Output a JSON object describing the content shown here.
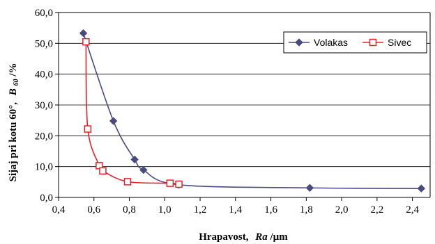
{
  "chart_data": {
    "type": "scatter",
    "title": "",
    "xlabel": {
      "main": "Hrapavost,",
      "var": "Ra",
      "unit": "/µm"
    },
    "ylabel": {
      "main": "Sijaj pri kotu 60°,",
      "var": "B",
      "sub": "60",
      "unit": "/%"
    },
    "xlim": [
      0.4,
      2.5
    ],
    "ylim": [
      0,
      60
    ],
    "xticks": [
      "0,4",
      "0,6",
      "0,8",
      "1,0",
      "1,2",
      "1,4",
      "1,6",
      "1,8",
      "2,0",
      "2,2",
      "2,4"
    ],
    "xtick_values": [
      0.4,
      0.6,
      0.8,
      1.0,
      1.2,
      1.4,
      1.6,
      1.8,
      2.0,
      2.2,
      2.4
    ],
    "yticks": [
      "0,0",
      "10,0",
      "20,0",
      "30,0",
      "40,0",
      "50,0",
      "60,0"
    ],
    "ytick_values": [
      0,
      10,
      20,
      30,
      40,
      50,
      60
    ],
    "grid": "horizontal",
    "legend_position": "top-right",
    "series": [
      {
        "name": "Volakas",
        "color": "#4a4a7e",
        "marker": "diamond",
        "points": [
          {
            "x": 0.54,
            "y": 53.3
          },
          {
            "x": 0.71,
            "y": 24.8
          },
          {
            "x": 0.83,
            "y": 12.3
          },
          {
            "x": 0.88,
            "y": 8.9
          },
          {
            "x": 1.08,
            "y": 4.1
          },
          {
            "x": 1.82,
            "y": 3.1
          },
          {
            "x": 2.45,
            "y": 2.9
          }
        ]
      },
      {
        "name": "Sivec",
        "color": "#e8202a",
        "marker": "square",
        "points": [
          {
            "x": 0.555,
            "y": 50.5
          },
          {
            "x": 0.565,
            "y": 22.2
          },
          {
            "x": 0.63,
            "y": 10.3
          },
          {
            "x": 0.65,
            "y": 8.6
          },
          {
            "x": 0.79,
            "y": 5.1
          },
          {
            "x": 1.03,
            "y": 4.6
          },
          {
            "x": 1.08,
            "y": 4.3
          }
        ]
      }
    ]
  }
}
